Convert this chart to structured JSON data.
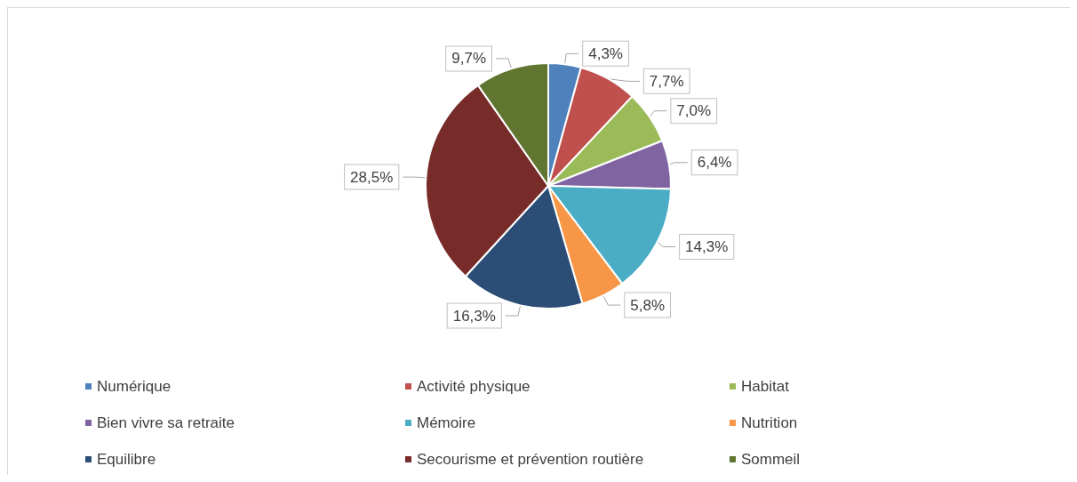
{
  "chart_data": {
    "type": "pie",
    "categories": [
      "Numérique",
      "Activité physique",
      "Habitat",
      "Bien vivre sa retraite",
      "Mémoire",
      "Nutrition",
      "Equilibre",
      "Secourisme et prévention routière",
      "Sommeil"
    ],
    "values": [
      4.3,
      7.7,
      7.0,
      6.4,
      14.3,
      5.8,
      16.3,
      28.5,
      9.7
    ],
    "value_labels": [
      "4,3%",
      "7,7%",
      "7,0%",
      "6,4%",
      "14,3%",
      "5,8%",
      "16,3%",
      "28,5%",
      "9,7%"
    ],
    "colors": [
      "#4f81bd",
      "#c0504d",
      "#9bbb59",
      "#8064a2",
      "#4bacc6",
      "#f79646",
      "#2c4d75",
      "#772c2a",
      "#5f7530"
    ],
    "legend": "bottom"
  }
}
